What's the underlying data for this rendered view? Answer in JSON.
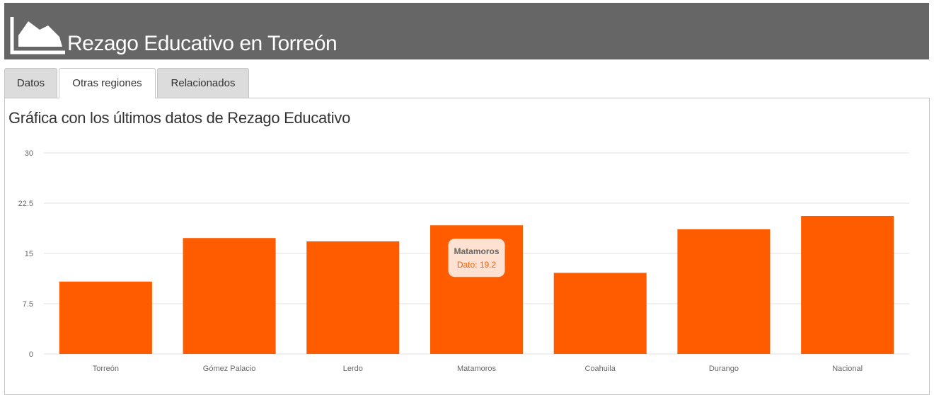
{
  "header": {
    "title": "Rezago Educativo en Torreón",
    "logo_icon": "area-chart-icon"
  },
  "tabs": [
    {
      "label": "Datos",
      "active": false
    },
    {
      "label": "Otras regiones",
      "active": true
    },
    {
      "label": "Relacionados",
      "active": false
    }
  ],
  "panel": {
    "heading": "Gráfica con los últimos datos de Rezago Educativo"
  },
  "tooltip": {
    "title": "Matamoros",
    "label": "Dato: 19.2"
  },
  "colors": {
    "header_bg": "#666666",
    "bar": "#ff5c00",
    "grid": "#e1e1e1"
  },
  "chart_data": {
    "type": "bar",
    "categories": [
      "Torreón",
      "Gómez Palacio",
      "Lerdo",
      "Matamoros",
      "Coahuila",
      "Durango",
      "Nacional"
    ],
    "values": [
      10.8,
      17.3,
      16.8,
      19.2,
      12.1,
      18.6,
      20.6
    ],
    "yticks": [
      "0",
      "7.5",
      "15",
      "22.5",
      "30"
    ],
    "ylim": [
      0,
      30
    ],
    "grid": true,
    "highlighted": "Matamoros"
  }
}
